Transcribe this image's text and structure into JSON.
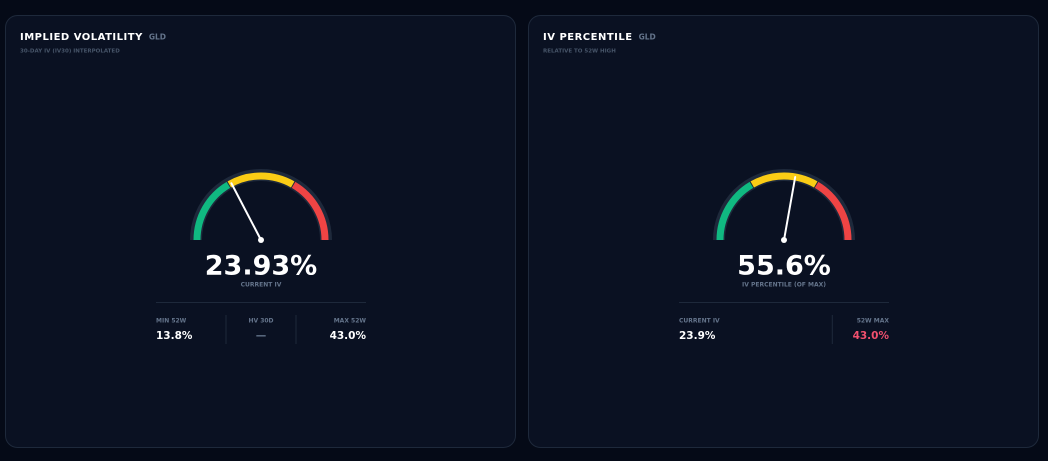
{
  "cards": [
    {
      "title": "IMPLIED VOLATILITY",
      "ticker": "GLD",
      "subtitle": "30-DAY IV (IV30) INTERPOLATED",
      "gauge": {
        "value": 23.93,
        "value_label": "23.93%",
        "range": [
          13.8,
          43.0
        ],
        "caption": "CURRENT IV"
      },
      "stats": [
        {
          "label": "MIN 52W",
          "value": "13.8%"
        },
        {
          "label": "HV 30D",
          "value": "—",
          "color": "#64748b"
        },
        {
          "label": "MAX 52W",
          "value": "43.0%"
        }
      ]
    },
    {
      "title": "IV PERCENTILE",
      "ticker": "GLD",
      "subtitle": "RELATIVE TO 52W HIGH",
      "gauge": {
        "value": 55.6,
        "value_label": "55.6%",
        "range": [
          0,
          100
        ],
        "caption": "IV PERCENTILE (OF MAX)"
      },
      "stats": [
        {
          "label": "CURRENT IV",
          "value": "23.9%"
        },
        {
          "label": "52W MAX",
          "value": "43.0%",
          "color": "#f0506e"
        }
      ]
    }
  ]
}
